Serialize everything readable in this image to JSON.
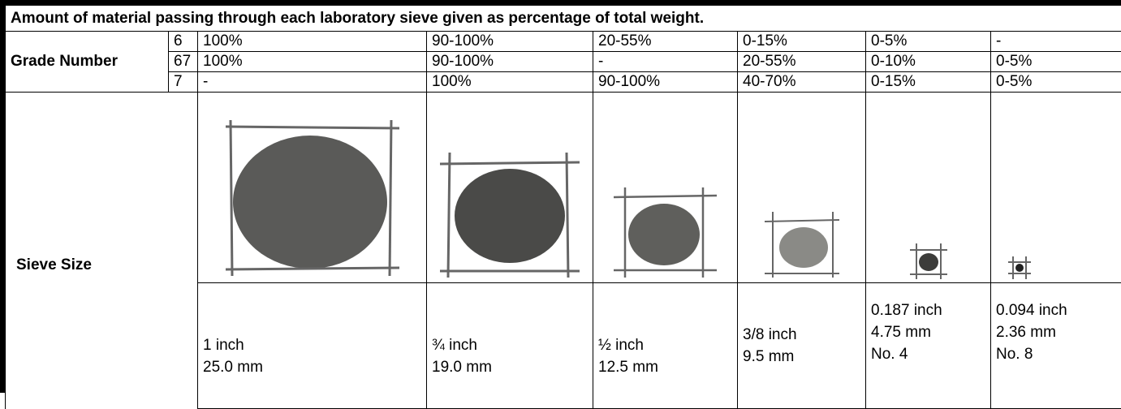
{
  "title": "Amount of material passing through each laboratory sieve given as percentage of total weight.",
  "grade_label": "Grade Number",
  "grades": [
    {
      "number": "6",
      "values": [
        "100%",
        "90-100%",
        "20-55%",
        "0-15%",
        "0-5%",
        "-"
      ]
    },
    {
      "number": "67",
      "values": [
        "100%",
        "90-100%",
        "-",
        "20-55%",
        "0-10%",
        "0-5%"
      ]
    },
    {
      "number": "7",
      "values": [
        "-",
        "100%",
        "90-100%",
        "40-70%",
        "0-15%",
        "0-5%"
      ]
    }
  ],
  "sieve_label": "Sieve Size",
  "sieves": [
    {
      "lines": [
        "1 inch",
        "25.0 mm"
      ]
    },
    {
      "lines": [
        "¾ inch",
        "19.0 mm"
      ]
    },
    {
      "lines": [
        "½ inch",
        "12.5 mm"
      ]
    },
    {
      "lines": [
        "3/8 inch",
        "9.5 mm"
      ]
    },
    {
      "lines": [
        "0.187 inch",
        "4.75 mm",
        "No. 4"
      ]
    },
    {
      "lines": [
        "0.094 inch",
        "2.36 mm",
        "No. 8"
      ]
    }
  ]
}
